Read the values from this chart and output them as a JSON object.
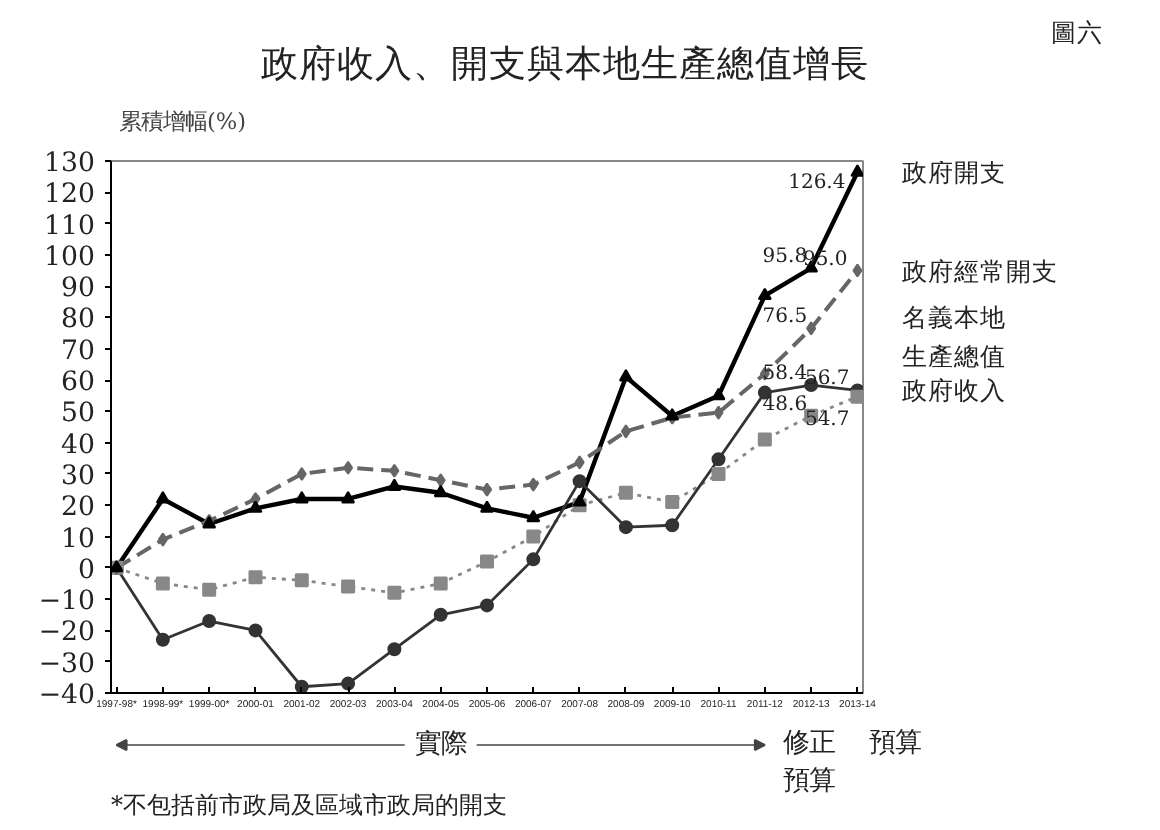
{
  "chart_data": {
    "type": "line",
    "title": "政府收入、開支與本地生產總值增長",
    "ylabel": "累積增幅(%)",
    "categories": [
      "1997-98*",
      "1998-99*",
      "1999-00*",
      "2000-01",
      "2001-02",
      "2002-03",
      "2003-04",
      "2004-05",
      "2005-06",
      "2006-07",
      "2007-08",
      "2008-09",
      "2009-10",
      "2010-11",
      "2011-12",
      "2012-13",
      "2013-14"
    ],
    "ylim": [
      -40,
      130
    ],
    "yticks": [
      -40,
      -30,
      -20,
      -10,
      0,
      10,
      20,
      30,
      40,
      50,
      60,
      70,
      80,
      90,
      100,
      110,
      120,
      130
    ],
    "grid": false,
    "legend": "right",
    "series": [
      {
        "name": "政府開支",
        "color": "#000000",
        "marker": "triangle",
        "line_style": "solid",
        "values": [
          0,
          22,
          14,
          19,
          22,
          22,
          26,
          24,
          19,
          16,
          21,
          61,
          48.5,
          55,
          87,
          95.8,
          126.4
        ],
        "value_labels": [
          null,
          null,
          null,
          null,
          null,
          null,
          null,
          null,
          null,
          null,
          null,
          null,
          null,
          null,
          null,
          "95.8",
          "126.4"
        ]
      },
      {
        "name": "政府經常開支",
        "color": "#666666",
        "marker": "diamond",
        "line_style": "dashed",
        "values": [
          0,
          9,
          15,
          22,
          30,
          32,
          31,
          28,
          25,
          26.6,
          33.7,
          43.6,
          48,
          49.6,
          62,
          76.5,
          95.0
        ],
        "value_labels": [
          null,
          null,
          null,
          null,
          null,
          null,
          null,
          null,
          null,
          null,
          null,
          null,
          null,
          null,
          null,
          "76.5",
          "95.0"
        ]
      },
      {
        "name": "名義本地生產總值",
        "color": "#888888",
        "marker": "square",
        "line_style": "dotted",
        "values": [
          0,
          -5,
          -7,
          -3,
          -4,
          -6,
          -8,
          -5,
          2,
          10,
          20,
          24,
          21,
          30,
          41,
          48.6,
          54.7
        ],
        "value_labels": [
          null,
          null,
          null,
          null,
          null,
          null,
          null,
          null,
          null,
          null,
          null,
          null,
          null,
          null,
          null,
          "48.6",
          "54.7"
        ]
      },
      {
        "name": "政府收入",
        "color": "#333333",
        "marker": "circle",
        "line_style": "solid",
        "values": [
          0,
          -23,
          -17,
          -20,
          -38,
          -37,
          -26,
          -15,
          -12,
          2.7,
          27.7,
          13,
          13.6,
          34.7,
          56,
          58.4,
          56.7
        ],
        "value_labels": [
          null,
          null,
          null,
          null,
          null,
          null,
          null,
          null,
          null,
          null,
          null,
          null,
          null,
          null,
          null,
          "58.4",
          "56.7"
        ]
      }
    ],
    "annotations": [
      "圖六",
      "實際",
      "修正預算",
      "預算",
      "*不包括前市政局及區域市政局的開支"
    ]
  }
}
